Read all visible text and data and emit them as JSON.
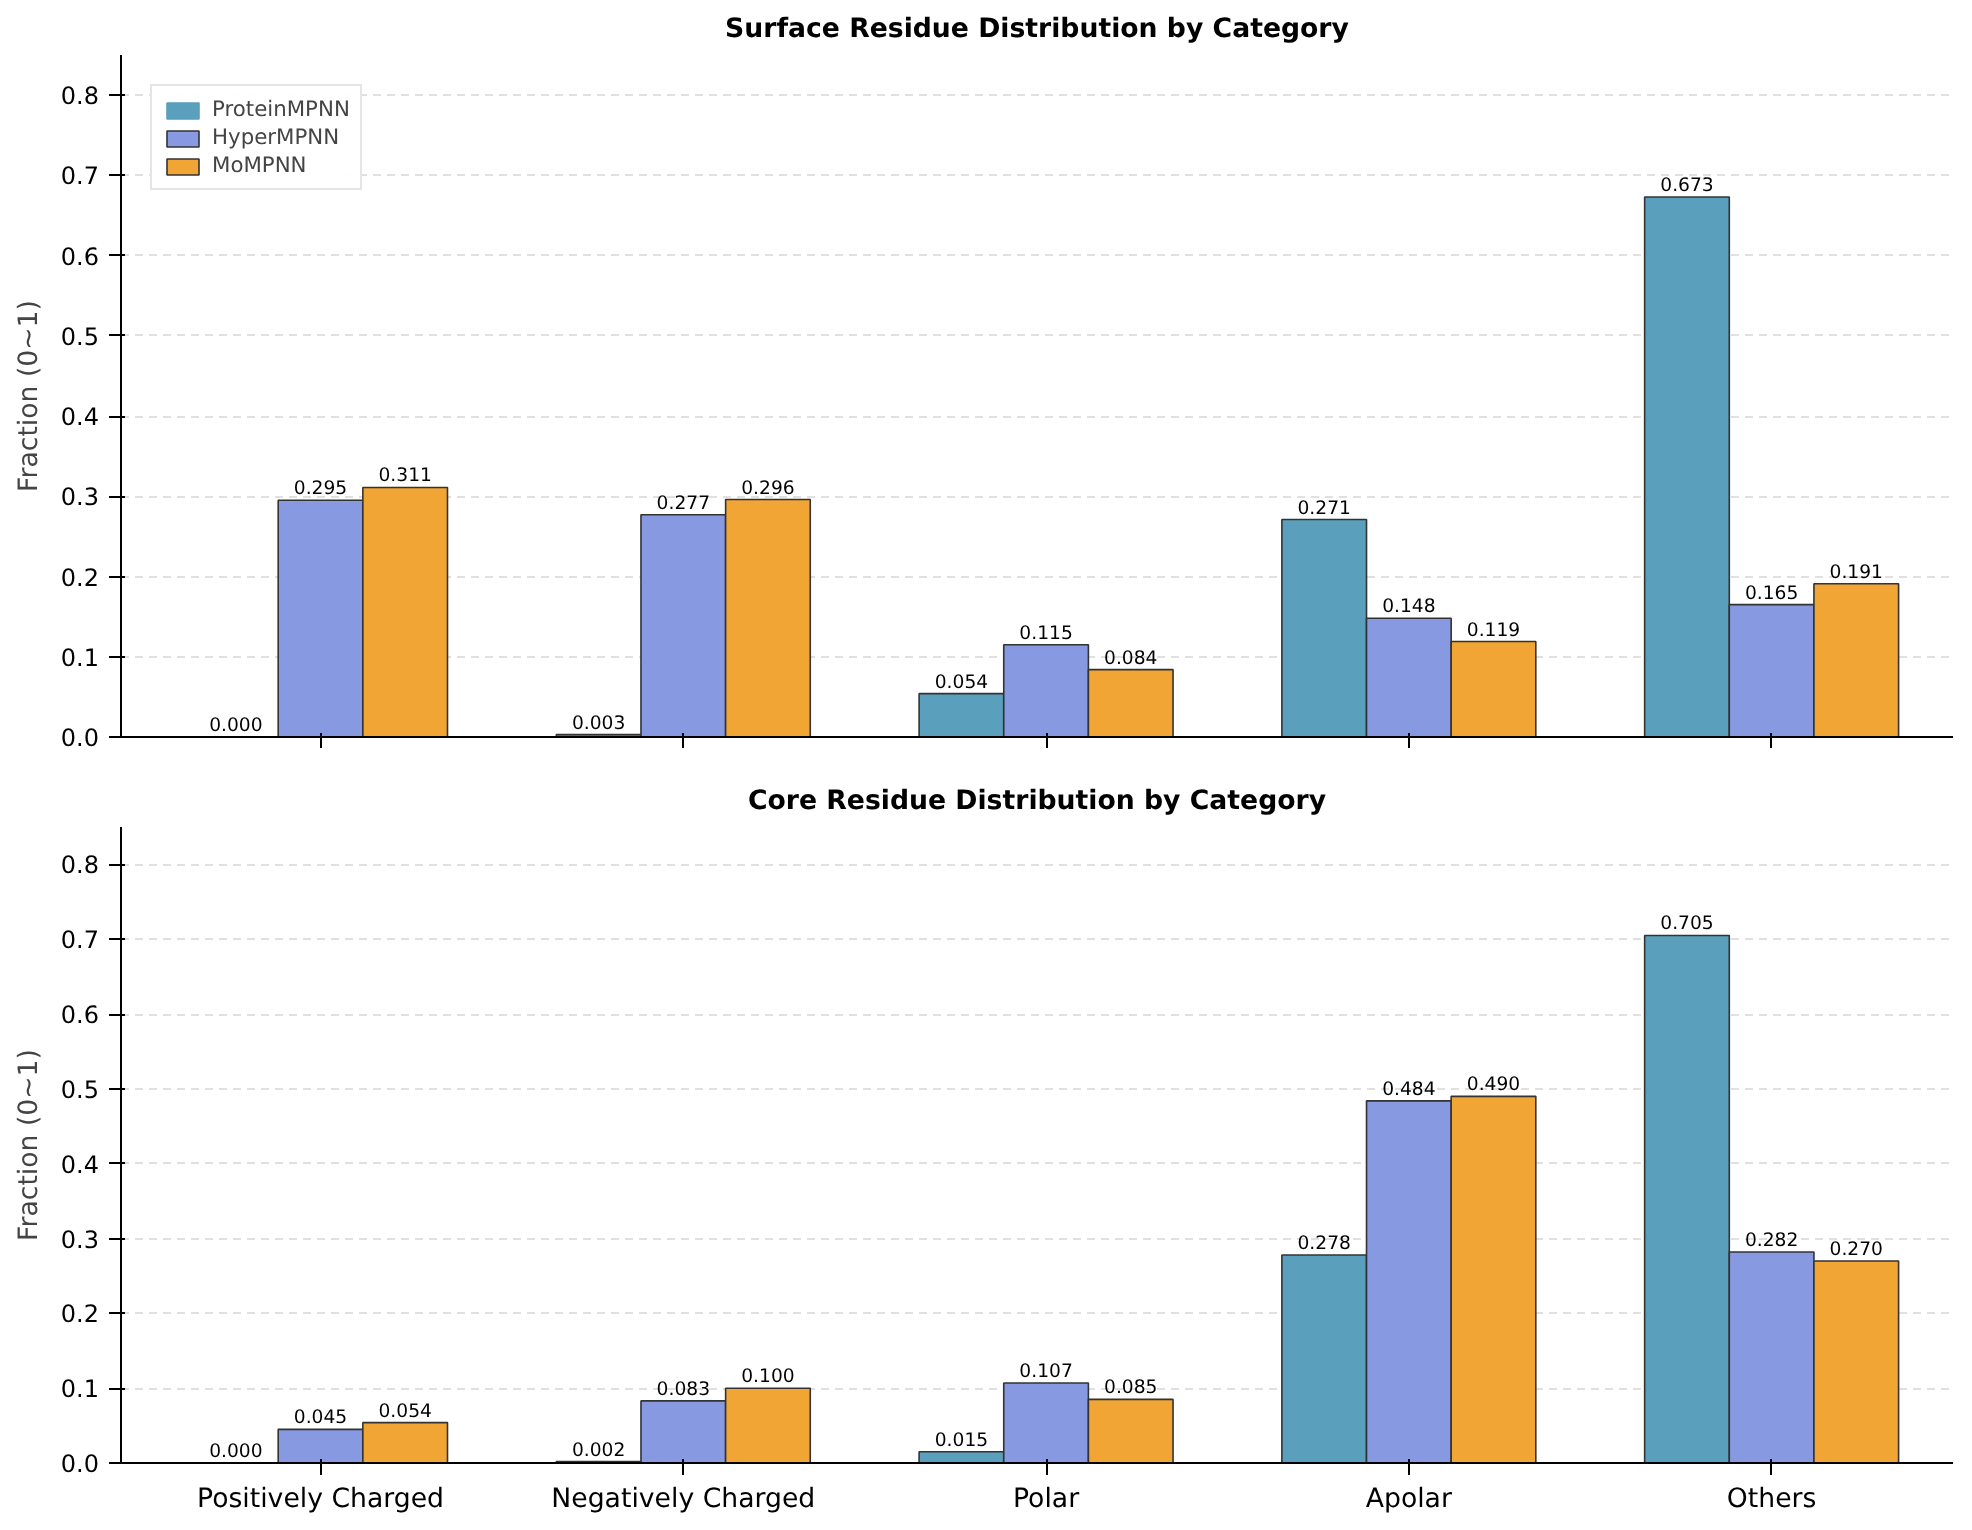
{
  "chart_data": [
    {
      "type": "bar",
      "title": "Surface Residue Distribution by Category",
      "ylabel": "Fraction (0~1)",
      "categories": [
        null,
        null,
        null,
        null,
        null
      ],
      "series": [
        {
          "name": "ProteinMPNN",
          "color": "#5a9fbc",
          "values": [
            0.0,
            0.003,
            0.054,
            0.271,
            0.673
          ],
          "value_labels": [
            "0.000",
            "0.003",
            "0.054",
            "0.271",
            "0.673"
          ]
        },
        {
          "name": "HyperMPNN",
          "color": "#8799e0",
          "values": [
            0.295,
            0.277,
            0.115,
            0.148,
            0.165
          ],
          "value_labels": [
            "0.295",
            "0.277",
            "0.115",
            "0.148",
            "0.165"
          ]
        },
        {
          "name": "MoMPNN",
          "color": "#f0a535",
          "values": [
            0.311,
            0.296,
            0.084,
            0.119,
            0.191
          ],
          "value_labels": [
            "0.311",
            "0.296",
            "0.084",
            "0.119",
            "0.191"
          ]
        }
      ],
      "ylim": [
        0,
        0.85
      ],
      "yticks": [
        {
          "value": 0,
          "label": "0.0"
        },
        0.1,
        0.2,
        0.3,
        0.4,
        0.5,
        0.6,
        0.7,
        0.8
      ],
      "grid": "y",
      "legend": "top left",
      "tick_labels": "y"
    },
    {
      "type": "bar",
      "title": "Core Residue Distribution by Category",
      "ylabel": "Fraction (0~1)",
      "categories": [
        "Positively Charged",
        "Negatively Charged",
        "Polar",
        "Apolar",
        "Others"
      ],
      "series": [
        {
          "color": "#5a9fbc",
          "values": [
            0.0,
            0.002,
            0.015,
            0.278,
            0.705
          ],
          "value_labels": [
            "0.000",
            "0.002",
            "0.015",
            "0.278",
            "0.705"
          ]
        },
        {
          "color": "#8799e0",
          "values": [
            0.045,
            0.083,
            0.107,
            0.484,
            0.282
          ],
          "value_labels": [
            "0.045",
            "0.083",
            "0.107",
            "0.484",
            "0.282"
          ]
        },
        {
          "color": "#f0a535",
          "values": [
            0.054,
            0.1,
            0.085,
            0.49,
            0.27
          ],
          "value_labels": [
            "0.054",
            "0.100",
            "0.085",
            "0.490",
            "0.270"
          ]
        }
      ],
      "ylim": [
        0,
        0.85
      ],
      "yticks": [
        {
          "value": 0,
          "label": "0.0"
        },
        0.1,
        0.2,
        0.3,
        0.4,
        0.5,
        0.6,
        0.7,
        0.8
      ],
      "grid": "y",
      "legend": false
    }
  ]
}
